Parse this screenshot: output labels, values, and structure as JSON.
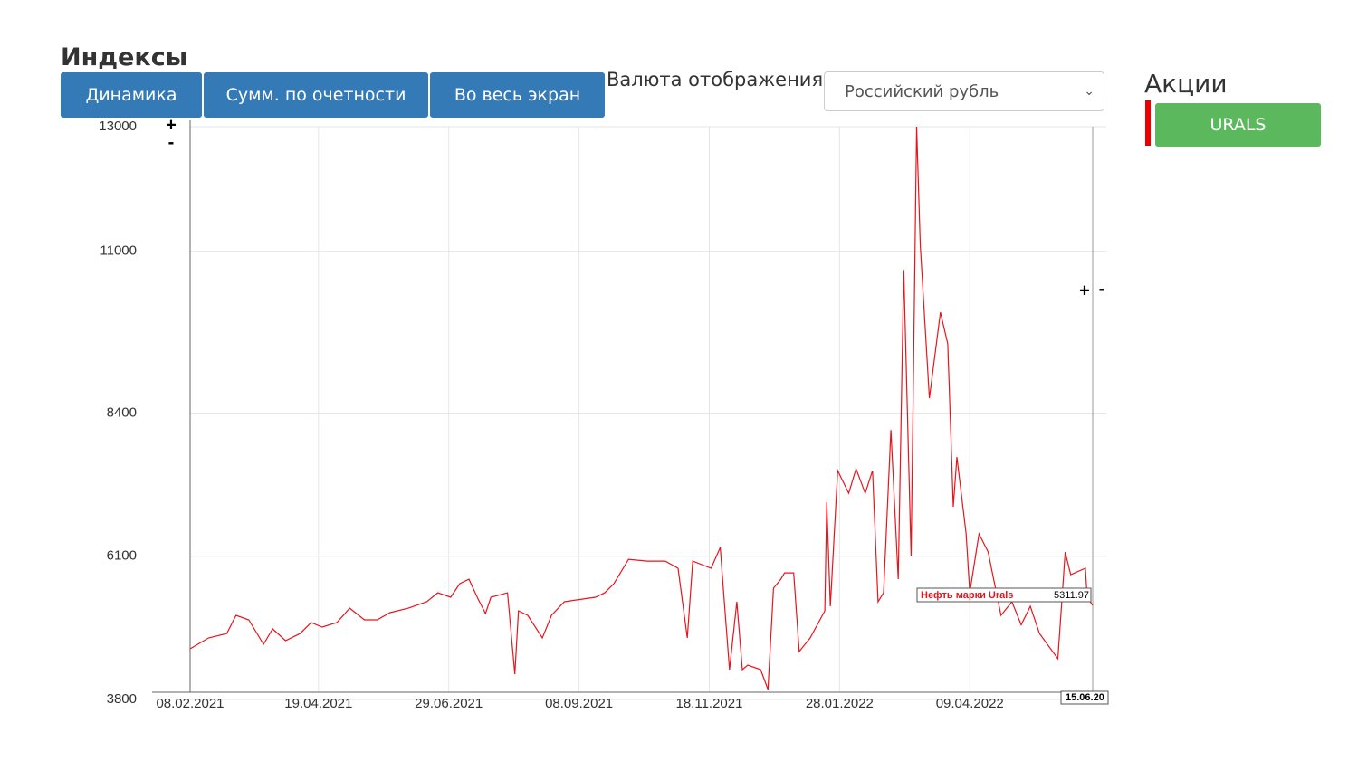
{
  "header": {
    "title": "Индексы",
    "buttons": [
      "Динамика",
      "Сумм. по очетности",
      "Во весь экран"
    ],
    "currency_label": "Валюта отображения",
    "currency_select": "Российский рубль"
  },
  "sidebar": {
    "title": "Акции",
    "button": "URALS"
  },
  "zoom": {
    "plus": "+",
    "minus": "-"
  },
  "chart_data": {
    "type": "line",
    "x": [
      "08.02.2021",
      "18.02.2021",
      "28.02.2021",
      "05.03.2021",
      "12.03.2021",
      "20.03.2021",
      "25.03.2021",
      "01.04.2021",
      "09.04.2021",
      "15.04.2021",
      "21.04.2021",
      "29.04.2021",
      "06.05.2021",
      "14.05.2021",
      "21.05.2021",
      "28.05.2021",
      "07.06.2021",
      "17.06.2021",
      "23.06.2021",
      "30.06.2021",
      "05.07.2021",
      "10.07.2021",
      "15.07.2021",
      "19.07.2021",
      "22.07.2021",
      "31.07.2021",
      "04.08.2021",
      "06.08.2021",
      "11.08.2021",
      "19.08.2021",
      "24.08.2021",
      "31.08.2021",
      "10.09.2021",
      "17.09.2021",
      "22.09.2021",
      "27.09.2021",
      "05.10.2021",
      "15.10.2021",
      "25.10.2021",
      "01.11.2021",
      "06.11.2021",
      "09.11.2021",
      "19.11.2021",
      "24.11.2021",
      "26.11.2021",
      "29.11.2021",
      "03.12.2021",
      "06.12.2021",
      "09.12.2021",
      "16.12.2021",
      "20.12.2021",
      "23.12.2021",
      "27.12.2021",
      "29.12.2021",
      "03.01.2022",
      "06.01.2022",
      "12.01.2022",
      "20.01.2022",
      "21.01.2022",
      "23.01.2022",
      "27.01.2022",
      "02.02.2022",
      "06.02.2022",
      "11.02.2022",
      "15.02.2022",
      "18.02.2022",
      "21.02.2022",
      "25.02.2022",
      "01.03.2022",
      "04.03.2022",
      "08.03.2022",
      "11.03.2022",
      "13.03.2022",
      "18.03.2022",
      "24.03.2022",
      "28.03.2022",
      "31.03.2022",
      "02.04.2022",
      "07.04.2022",
      "09.04.2022",
      "14.04.2022",
      "19.04.2022",
      "26.04.2022",
      "02.05.2022",
      "07.05.2022",
      "12.05.2022",
      "17.05.2022",
      "27.05.2022",
      "31.05.2022",
      "03.06.2022",
      "11.06.2022",
      "12.06.2022",
      "15.06.2022"
    ],
    "series": [
      {
        "name": "Нефть марки Urals",
        "color": "#e8141c",
        "values": [
          4614,
          4788,
          4860,
          5151,
          5079,
          4686,
          4933,
          4744,
          4860,
          5035,
          4962,
          5035,
          5267,
          5079,
          5079,
          5195,
          5267,
          5369,
          5514,
          5442,
          5660,
          5732,
          5413,
          5180,
          5442,
          5514,
          4207,
          5224,
          5151,
          4788,
          5151,
          5369,
          5413,
          5442,
          5514,
          5660,
          6052,
          6022,
          6022,
          5907,
          4788,
          6022,
          5907,
          6241,
          5442,
          4279,
          5369,
          4279,
          4352,
          4279,
          3960,
          5587,
          5732,
          5834,
          5834,
          4570,
          4788,
          5224,
          6967,
          5297,
          7476,
          7113,
          7505,
          7113,
          7476,
          5369,
          5514,
          8130,
          5732,
          10700,
          6096,
          13000,
          11108,
          8638,
          10019,
          9511,
          6895,
          7694,
          6459,
          5514,
          6459,
          6169,
          5151,
          5369,
          4999,
          5297,
          4860,
          4454,
          6169,
          5805,
          5907,
          5442,
          5311.97
        ]
      }
    ],
    "xlim": [
      "08.02.2021",
      "15.06.2022"
    ],
    "xticks": [
      "08.02.2021",
      "19.04.2021",
      "29.06.2021",
      "08.09.2021",
      "18.11.2021",
      "28.01.2022",
      "09.04.2022"
    ],
    "cursor_date_label": "15.06.20",
    "ylim": [
      3800,
      13000
    ],
    "yticks": [
      3800,
      6100,
      8400,
      11000,
      13000
    ],
    "grid": true
  }
}
